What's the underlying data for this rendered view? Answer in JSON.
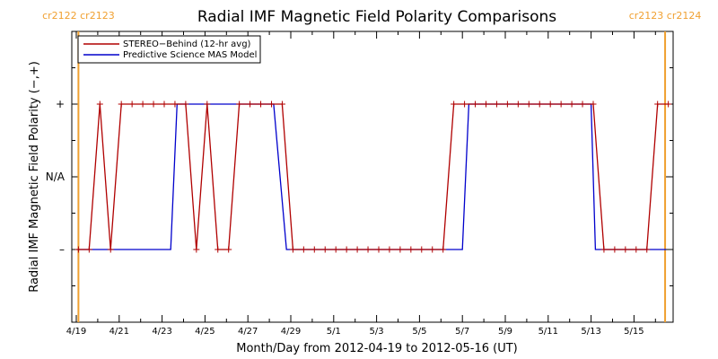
{
  "chart_data": {
    "type": "line",
    "title": "Radial IMF Magnetic Field Polarity Comparisons",
    "xlabel": "Month/Day from 2012-04-19 to 2012-05-16 (UT)",
    "ylabel": "Radial IMF Magnetic Field Polarity (−,+)",
    "x_range_days": [
      0,
      27.5
    ],
    "ylim": [
      -2,
      2
    ],
    "x_ticks": [
      {
        "day": 0,
        "label": "4/19"
      },
      {
        "day": 2,
        "label": "4/21"
      },
      {
        "day": 4,
        "label": "4/23"
      },
      {
        "day": 6,
        "label": "4/25"
      },
      {
        "day": 8,
        "label": "4/27"
      },
      {
        "day": 10,
        "label": "4/29"
      },
      {
        "day": 12,
        "label": "5/1"
      },
      {
        "day": 14,
        "label": "5/3"
      },
      {
        "day": 16,
        "label": "5/5"
      },
      {
        "day": 18,
        "label": "5/7"
      },
      {
        "day": 20,
        "label": "5/9"
      },
      {
        "day": 22,
        "label": "5/11"
      },
      {
        "day": 24,
        "label": "5/13"
      },
      {
        "day": 26,
        "label": "5/15"
      }
    ],
    "y_ticks": [
      {
        "value": 1,
        "label": "+"
      },
      {
        "value": 0,
        "label": "N/A"
      },
      {
        "value": -1,
        "label": "–"
      }
    ],
    "carrington_markers": [
      {
        "day": 0.1,
        "label": "cr2122 cr2123"
      },
      {
        "day": 27.45,
        "label": "cr2123 cr2124"
      }
    ],
    "legend_position": "top-left",
    "series": [
      {
        "name": "STEREO−Behind (12-hr avg)",
        "color": "#b00000",
        "markers": true,
        "points": [
          [
            0.1,
            -1
          ],
          [
            0.6,
            -1
          ],
          [
            1.1,
            1
          ],
          [
            1.6,
            -1
          ],
          [
            2.1,
            1
          ],
          [
            2.6,
            1
          ],
          [
            3.1,
            1
          ],
          [
            3.6,
            1
          ],
          [
            4.1,
            1
          ],
          [
            4.6,
            1
          ],
          [
            5.1,
            1
          ],
          [
            5.6,
            -1
          ],
          [
            6.1,
            1
          ],
          [
            6.6,
            -1
          ],
          [
            7.1,
            -1
          ],
          [
            7.6,
            1
          ],
          [
            8.1,
            1
          ],
          [
            8.6,
            1
          ],
          [
            9.1,
            1
          ],
          [
            9.6,
            1
          ],
          [
            10.1,
            -1
          ],
          [
            10.6,
            -1
          ],
          [
            11.1,
            -1
          ],
          [
            11.6,
            -1
          ],
          [
            12.1,
            -1
          ],
          [
            12.6,
            -1
          ],
          [
            13.1,
            -1
          ],
          [
            13.6,
            -1
          ],
          [
            14.1,
            -1
          ],
          [
            14.6,
            -1
          ],
          [
            15.1,
            -1
          ],
          [
            15.6,
            -1
          ],
          [
            16.1,
            -1
          ],
          [
            16.6,
            -1
          ],
          [
            17.1,
            -1
          ],
          [
            17.6,
            1
          ],
          [
            18.1,
            1
          ],
          [
            18.6,
            1
          ],
          [
            19.1,
            1
          ],
          [
            19.6,
            1
          ],
          [
            20.1,
            1
          ],
          [
            20.6,
            1
          ],
          [
            21.1,
            1
          ],
          [
            21.6,
            1
          ],
          [
            22.1,
            1
          ],
          [
            22.6,
            1
          ],
          [
            23.1,
            1
          ],
          [
            23.6,
            1
          ],
          [
            24.1,
            1
          ],
          [
            24.6,
            -1
          ],
          [
            25.1,
            -1
          ],
          [
            25.6,
            -1
          ],
          [
            26.1,
            -1
          ],
          [
            26.6,
            -1
          ],
          [
            27.1,
            1
          ],
          [
            27.6,
            1
          ]
        ]
      },
      {
        "name": "Predictive Science MAS Model",
        "color": "#0000cc",
        "markers": false,
        "points": [
          [
            0,
            -1
          ],
          [
            4.4,
            -1
          ],
          [
            4.7,
            1
          ],
          [
            9.2,
            1
          ],
          [
            9.8,
            -1
          ],
          [
            18.0,
            -1
          ],
          [
            18.3,
            1
          ],
          [
            24.0,
            1
          ],
          [
            24.2,
            -1
          ],
          [
            27.5,
            -1
          ]
        ]
      }
    ]
  }
}
